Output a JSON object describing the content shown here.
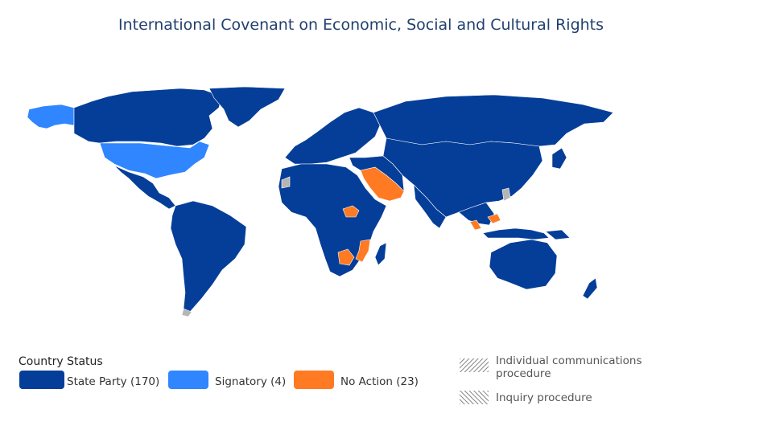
{
  "title": "International Covenant on Economic, Social and Cultural Rights",
  "legend": {
    "heading": "Country Status",
    "items": [
      {
        "label": "State Party (170)",
        "color": "#053E98"
      },
      {
        "label": "Signatory (4)",
        "color": "#2F86FF"
      },
      {
        "label": "No Action (23)",
        "color": "#FF7A22"
      }
    ],
    "procedures": [
      {
        "label_line1": "Individual communications",
        "label_line2": "procedure",
        "pattern": "diagonal-right"
      },
      {
        "label_line1": "Inquiry procedure",
        "label_line2": "",
        "pattern": "diagonal-left"
      }
    ]
  },
  "colors": {
    "state_party": "#053E98",
    "signatory": "#2F86FF",
    "no_action": "#FF7A22",
    "no_data": "#b5b5b5",
    "border": "#ffffff"
  }
}
